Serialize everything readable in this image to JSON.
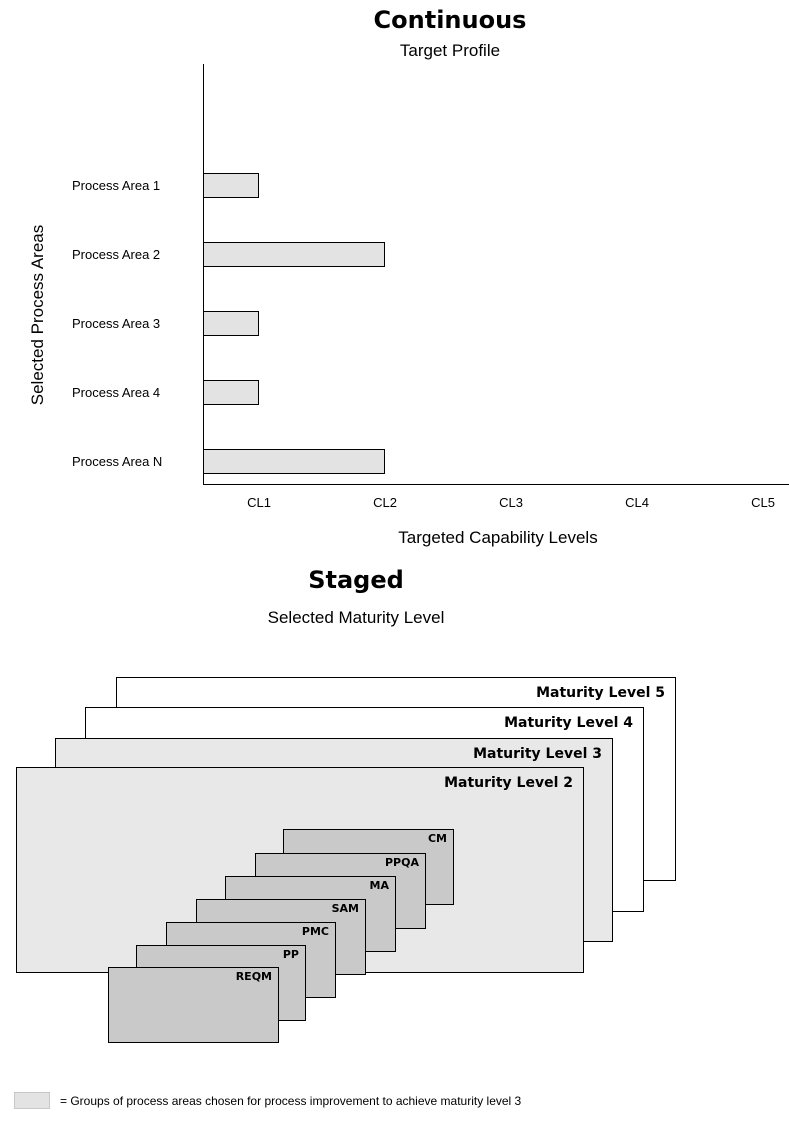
{
  "continuous": {
    "title": "Continuous",
    "subtitle": "Target Profile",
    "y_axis_label": "Selected Process Areas",
    "x_axis_label": "Targeted Capability Levels"
  },
  "chart_data": {
    "type": "bar",
    "orientation": "horizontal",
    "title": "Continuous",
    "subtitle": "Target Profile",
    "xlabel": "Targeted Capability Levels",
    "ylabel": "Selected Process Areas",
    "categories": [
      "Process Area 1",
      "Process Area 2",
      "Process Area 3",
      "Process Area 4",
      "Process Area N"
    ],
    "values": [
      1,
      2,
      1,
      1,
      2
    ],
    "x_ticks": [
      "CL1",
      "CL2",
      "CL3",
      "CL4",
      "CL5"
    ],
    "xlim": [
      0,
      5
    ],
    "grid": false,
    "bar_color": "#e3e3e3"
  },
  "staged": {
    "title": "Staged",
    "subtitle": "Selected Maturity Level",
    "maturity_levels": [
      {
        "label": "Maturity Level 5",
        "fill": "#ffffff"
      },
      {
        "label": "Maturity Level 4",
        "fill": "#ffffff"
      },
      {
        "label": "Maturity Level 3",
        "fill": "#e8e8e8"
      },
      {
        "label": "Maturity Level 2",
        "fill": "#e8e8e8"
      }
    ],
    "process_areas": [
      "CM",
      "PPQA",
      "MA",
      "SAM",
      "PMC",
      "PP",
      "REQM"
    ]
  },
  "legend": {
    "swatch_color": "#e3e3e3",
    "text": "= Groups of process areas chosen for process improvement to achieve maturity level 3"
  }
}
